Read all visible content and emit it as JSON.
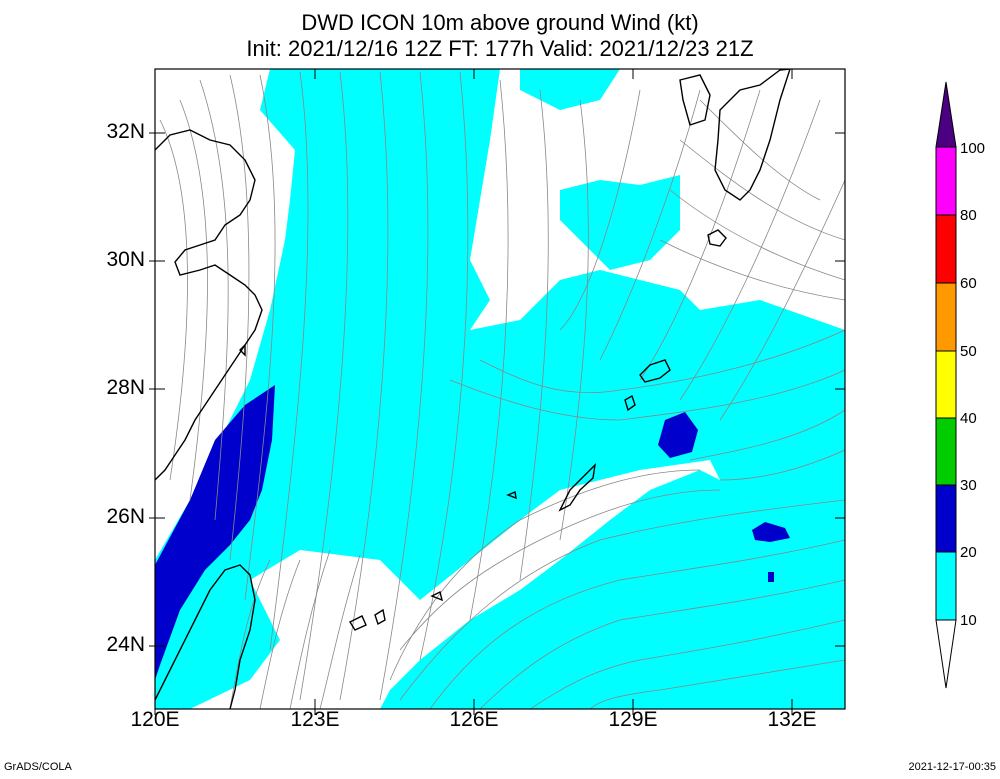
{
  "title": {
    "line1": "DWD ICON 10m above ground Wind (kt)",
    "line2": "Init: 2021/12/16 12Z  FT: 177h  Valid: 2021/12/23 21Z"
  },
  "axes": {
    "lat_labels": [
      "32N",
      "30N",
      "28N",
      "26N",
      "24N"
    ],
    "lon_labels": [
      "120E",
      "123E",
      "126E",
      "129E",
      "132E"
    ]
  },
  "colorbar": {
    "labels": [
      "100",
      "80",
      "60",
      "50",
      "40",
      "30",
      "20",
      "10"
    ],
    "colors": {
      "c100": "#4b0082",
      "c80": "#ff00ff",
      "c60": "#ff0000",
      "c50": "#ff9900",
      "c40": "#ffff00",
      "c30": "#00cc00",
      "c20": "#0000cc",
      "c10": "#00ffff",
      "c0": "#ffffff"
    }
  },
  "footer": {
    "credit": "GrADS/COLA",
    "timestamp": "2021-12-17-00:35"
  }
}
